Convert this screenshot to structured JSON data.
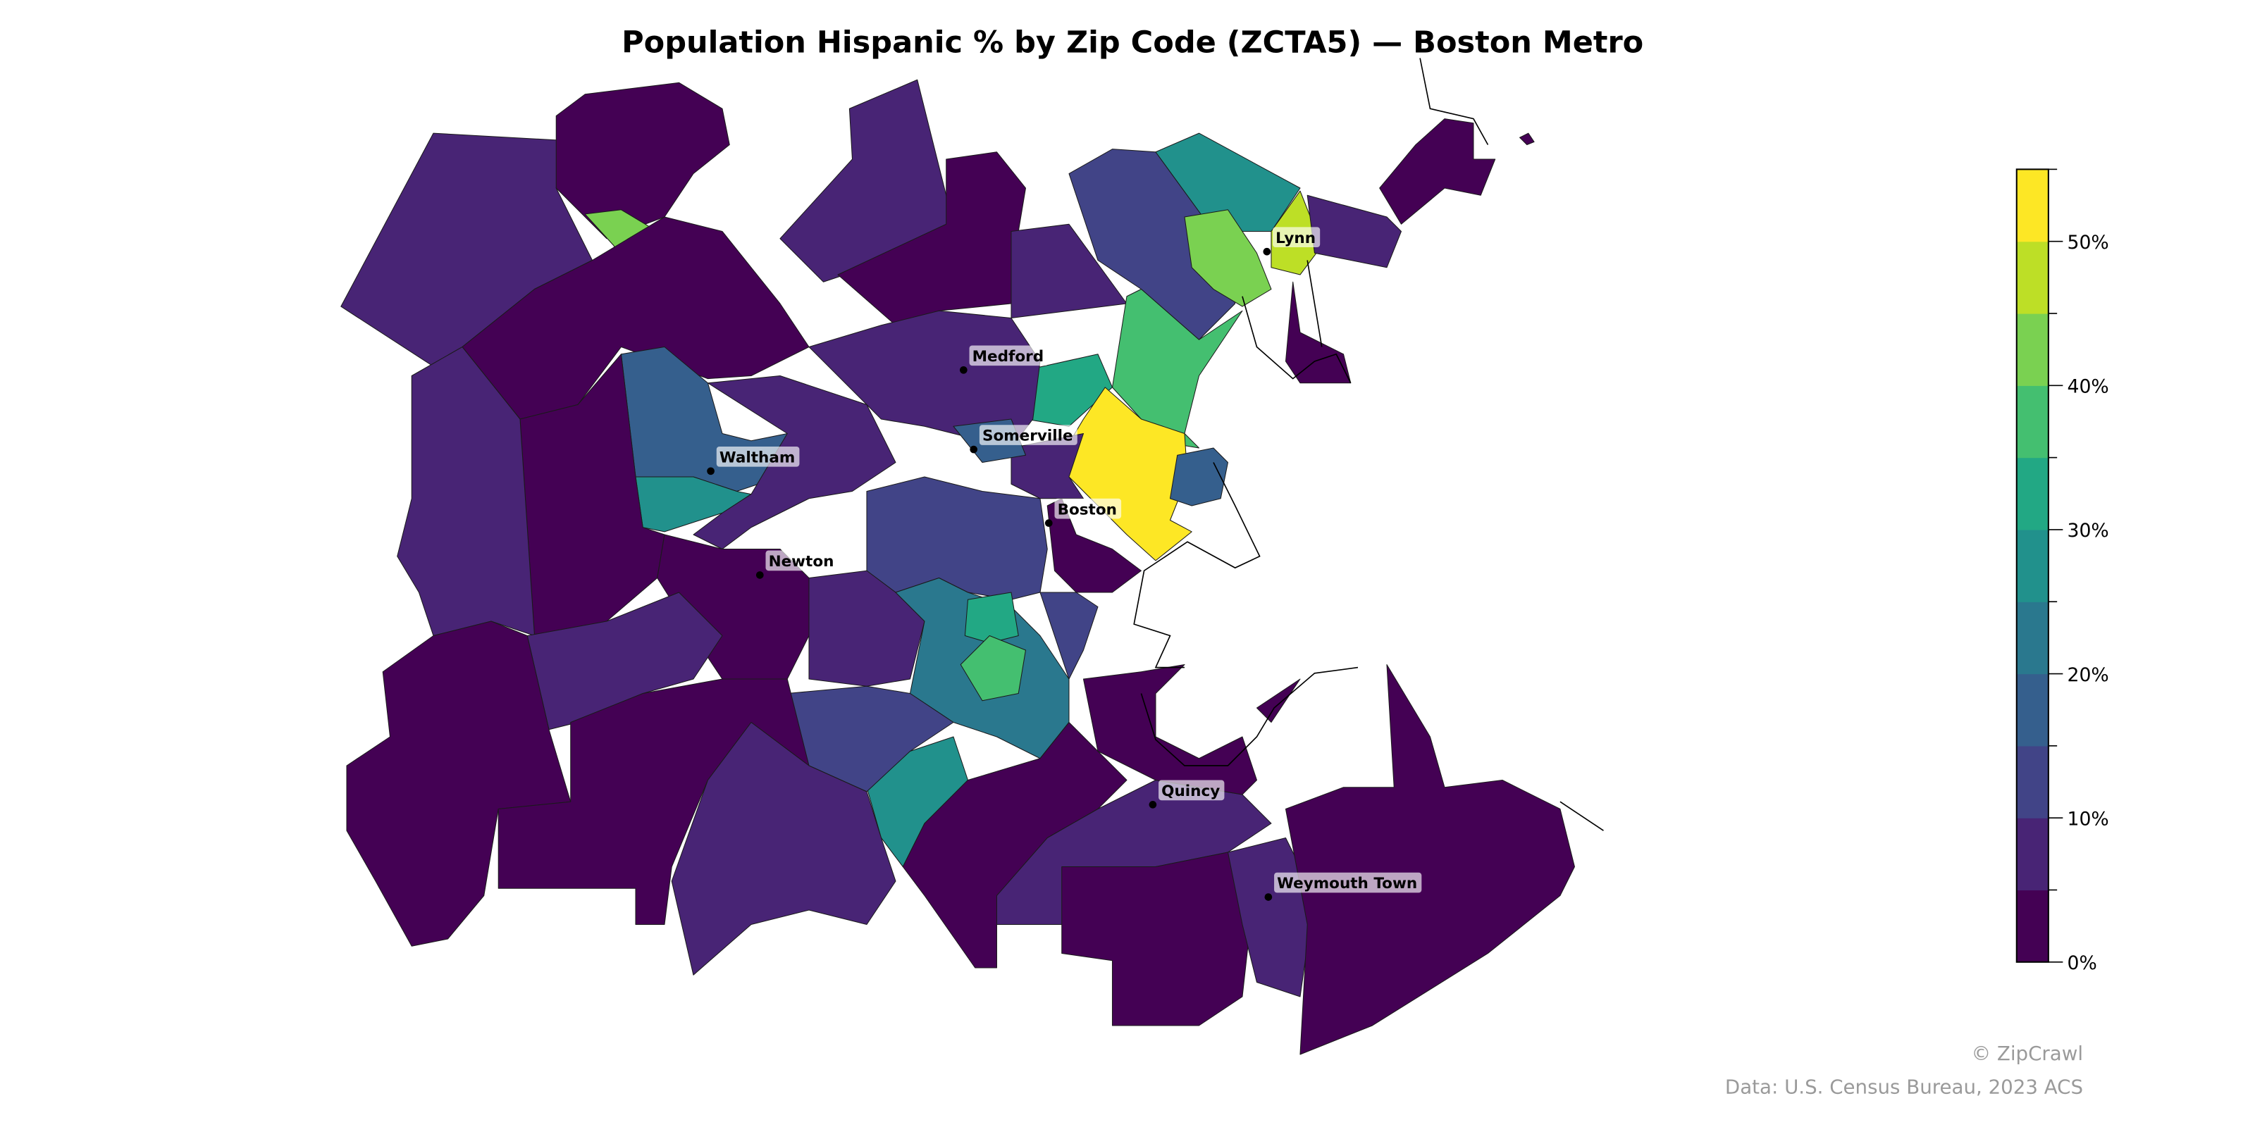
{
  "title": "Population Hispanic % by Zip Code (ZCTA5) — Boston Metro",
  "footer": {
    "credit": "© ZipCrawl",
    "source": "Data: U.S. Census Bureau, 2023 ACS"
  },
  "colorbar": {
    "colormap": "viridis",
    "range": [
      0,
      55
    ],
    "bin_step": 5,
    "bin_colors": [
      "#440154",
      "#482475",
      "#414487",
      "#355f8d",
      "#2a788e",
      "#21918c",
      "#22a884",
      "#44bf70",
      "#7ad151",
      "#bddf26",
      "#fde725"
    ],
    "ticks": [
      {
        "value": 0,
        "label": "0%"
      },
      {
        "value": 10,
        "label": "10%"
      },
      {
        "value": 20,
        "label": "20%"
      },
      {
        "value": 30,
        "label": "30%"
      },
      {
        "value": 40,
        "label": "40%"
      },
      {
        "value": 50,
        "label": "50%"
      }
    ]
  },
  "cities": [
    {
      "name": "Medford"
    },
    {
      "name": "Somerville"
    },
    {
      "name": "Waltham"
    },
    {
      "name": "Boston"
    },
    {
      "name": "Newton"
    },
    {
      "name": "Lynn"
    },
    {
      "name": "Quincy"
    },
    {
      "name": "Weymouth Town"
    }
  ],
  "regions_hispanic_pct": [
    7,
    2,
    42,
    3,
    7,
    2,
    8,
    12,
    27,
    43,
    48,
    8,
    2,
    38,
    32,
    55,
    18,
    6,
    17,
    25,
    2,
    7,
    8,
    3,
    13,
    7,
    20,
    31,
    38,
    28,
    12,
    8,
    2,
    2,
    7,
    2,
    7,
    2,
    2,
    8,
    2,
    2,
    2,
    3,
    8,
    15,
    14,
    2
  ]
}
